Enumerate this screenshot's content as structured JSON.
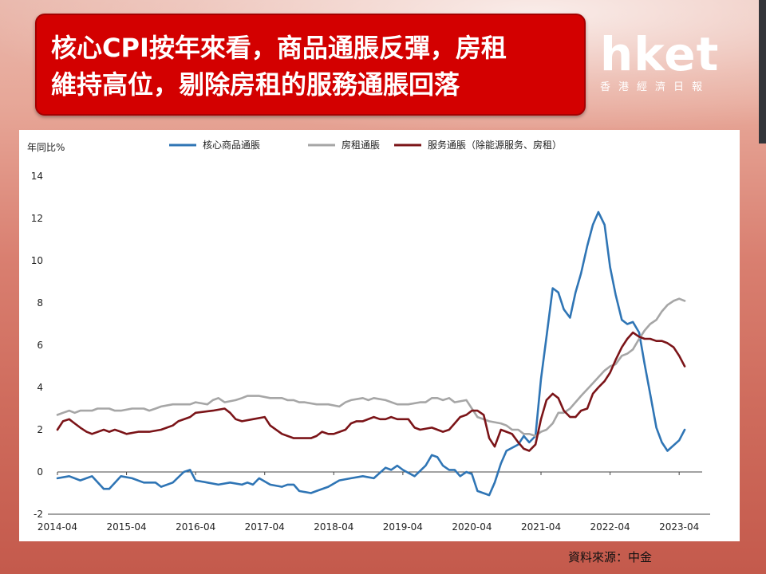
{
  "title": {
    "line1": "核心CPI按年來看，商品通脹反彈，房租",
    "line2": "維持高位，剔除房租的服務通脹回落"
  },
  "logo": {
    "brand": "hket",
    "subtitle": "香港經濟日報"
  },
  "source": "資料來源：中金",
  "colors": {
    "title_bg": "#d30000",
    "core_goods": "#2f75b5",
    "rent": "#a6a6a6",
    "services": "#7b1418"
  },
  "chart_data": {
    "type": "line",
    "ylabel": "年同比%",
    "ylim": [
      -2,
      14
    ],
    "yticks": [
      -2,
      0,
      2,
      4,
      6,
      8,
      10,
      12,
      14
    ],
    "xlim": [
      2014.25,
      2023.583
    ],
    "xticks": [
      "2014-04",
      "2015-04",
      "2016-04",
      "2017-04",
      "2018-04",
      "2019-04",
      "2020-04",
      "2021-04",
      "2022-04",
      "2023-04"
    ],
    "legend_position": "top",
    "grid": false,
    "series": [
      {
        "name": "核心商品通脹",
        "color": "#2f75b5",
        "points": [
          [
            2014.25,
            -0.3
          ],
          [
            2014.42,
            -0.2
          ],
          [
            2014.58,
            -0.4
          ],
          [
            2014.75,
            -0.2
          ],
          [
            2014.92,
            -0.8
          ],
          [
            2015.0,
            -0.8
          ],
          [
            2015.17,
            -0.2
          ],
          [
            2015.33,
            -0.3
          ],
          [
            2015.5,
            -0.5
          ],
          [
            2015.67,
            -0.5
          ],
          [
            2015.75,
            -0.7
          ],
          [
            2015.92,
            -0.5
          ],
          [
            2016.08,
            0.0
          ],
          [
            2016.17,
            0.1
          ],
          [
            2016.25,
            -0.4
          ],
          [
            2016.42,
            -0.5
          ],
          [
            2016.58,
            -0.6
          ],
          [
            2016.75,
            -0.5
          ],
          [
            2016.92,
            -0.6
          ],
          [
            2017.0,
            -0.5
          ],
          [
            2017.08,
            -0.6
          ],
          [
            2017.17,
            -0.3
          ],
          [
            2017.33,
            -0.6
          ],
          [
            2017.5,
            -0.7
          ],
          [
            2017.58,
            -0.6
          ],
          [
            2017.67,
            -0.6
          ],
          [
            2017.75,
            -0.9
          ],
          [
            2017.92,
            -1.0
          ],
          [
            2018.0,
            -0.9
          ],
          [
            2018.17,
            -0.7
          ],
          [
            2018.33,
            -0.4
          ],
          [
            2018.5,
            -0.3
          ],
          [
            2018.67,
            -0.2
          ],
          [
            2018.83,
            -0.3
          ],
          [
            2019.0,
            0.2
          ],
          [
            2019.08,
            0.1
          ],
          [
            2019.17,
            0.3
          ],
          [
            2019.25,
            0.1
          ],
          [
            2019.42,
            -0.2
          ],
          [
            2019.58,
            0.3
          ],
          [
            2019.67,
            0.8
          ],
          [
            2019.75,
            0.7
          ],
          [
            2019.83,
            0.3
          ],
          [
            2019.92,
            0.1
          ],
          [
            2020.0,
            0.1
          ],
          [
            2020.08,
            -0.2
          ],
          [
            2020.17,
            0.0
          ],
          [
            2020.25,
            -0.1
          ],
          [
            2020.33,
            -0.9
          ],
          [
            2020.5,
            -1.1
          ],
          [
            2020.58,
            -0.5
          ],
          [
            2020.67,
            0.4
          ],
          [
            2020.75,
            1.0
          ],
          [
            2020.92,
            1.3
          ],
          [
            2021.0,
            1.7
          ],
          [
            2021.08,
            1.4
          ],
          [
            2021.17,
            1.7
          ],
          [
            2021.25,
            4.4
          ],
          [
            2021.33,
            6.4
          ],
          [
            2021.42,
            8.7
          ],
          [
            2021.5,
            8.5
          ],
          [
            2021.58,
            7.7
          ],
          [
            2021.67,
            7.3
          ],
          [
            2021.75,
            8.5
          ],
          [
            2021.83,
            9.4
          ],
          [
            2021.92,
            10.7
          ],
          [
            2022.0,
            11.7
          ],
          [
            2022.08,
            12.3
          ],
          [
            2022.17,
            11.7
          ],
          [
            2022.25,
            9.7
          ],
          [
            2022.33,
            8.4
          ],
          [
            2022.42,
            7.2
          ],
          [
            2022.5,
            7.0
          ],
          [
            2022.58,
            7.1
          ],
          [
            2022.67,
            6.6
          ],
          [
            2022.75,
            5.1
          ],
          [
            2022.83,
            3.7
          ],
          [
            2022.92,
            2.1
          ],
          [
            2023.0,
            1.4
          ],
          [
            2023.08,
            1.0
          ],
          [
            2023.25,
            1.5
          ],
          [
            2023.33,
            2.0
          ]
        ]
      },
      {
        "name": "房租通脹",
        "color": "#a6a6a6",
        "points": [
          [
            2014.25,
            2.7
          ],
          [
            2014.33,
            2.8
          ],
          [
            2014.42,
            2.9
          ],
          [
            2014.5,
            2.8
          ],
          [
            2014.58,
            2.9
          ],
          [
            2014.75,
            2.9
          ],
          [
            2014.83,
            3.0
          ],
          [
            2015.0,
            3.0
          ],
          [
            2015.08,
            2.9
          ],
          [
            2015.17,
            2.9
          ],
          [
            2015.33,
            3.0
          ],
          [
            2015.5,
            3.0
          ],
          [
            2015.58,
            2.9
          ],
          [
            2015.67,
            3.0
          ],
          [
            2015.75,
            3.1
          ],
          [
            2015.92,
            3.2
          ],
          [
            2016.08,
            3.2
          ],
          [
            2016.17,
            3.2
          ],
          [
            2016.25,
            3.3
          ],
          [
            2016.42,
            3.2
          ],
          [
            2016.5,
            3.4
          ],
          [
            2016.58,
            3.5
          ],
          [
            2016.67,
            3.3
          ],
          [
            2016.83,
            3.4
          ],
          [
            2016.92,
            3.5
          ],
          [
            2017.0,
            3.6
          ],
          [
            2017.17,
            3.6
          ],
          [
            2017.33,
            3.5
          ],
          [
            2017.5,
            3.5
          ],
          [
            2017.58,
            3.4
          ],
          [
            2017.67,
            3.4
          ],
          [
            2017.75,
            3.3
          ],
          [
            2017.83,
            3.3
          ],
          [
            2018.0,
            3.2
          ],
          [
            2018.17,
            3.2
          ],
          [
            2018.33,
            3.1
          ],
          [
            2018.42,
            3.3
          ],
          [
            2018.5,
            3.4
          ],
          [
            2018.67,
            3.5
          ],
          [
            2018.75,
            3.4
          ],
          [
            2018.83,
            3.5
          ],
          [
            2019.0,
            3.4
          ],
          [
            2019.17,
            3.2
          ],
          [
            2019.33,
            3.2
          ],
          [
            2019.5,
            3.3
          ],
          [
            2019.58,
            3.3
          ],
          [
            2019.67,
            3.5
          ],
          [
            2019.75,
            3.5
          ],
          [
            2019.83,
            3.4
          ],
          [
            2019.92,
            3.5
          ],
          [
            2020.0,
            3.3
          ],
          [
            2020.17,
            3.4
          ],
          [
            2020.25,
            3.0
          ],
          [
            2020.33,
            2.6
          ],
          [
            2020.5,
            2.4
          ],
          [
            2020.67,
            2.3
          ],
          [
            2020.75,
            2.2
          ],
          [
            2020.83,
            2.0
          ],
          [
            2020.92,
            2.0
          ],
          [
            2021.0,
            1.8
          ],
          [
            2021.08,
            1.8
          ],
          [
            2021.17,
            1.7
          ],
          [
            2021.25,
            1.9
          ],
          [
            2021.33,
            2.0
          ],
          [
            2021.42,
            2.3
          ],
          [
            2021.5,
            2.8
          ],
          [
            2021.58,
            2.8
          ],
          [
            2021.67,
            3.0
          ],
          [
            2021.83,
            3.6
          ],
          [
            2022.0,
            4.2
          ],
          [
            2022.17,
            4.8
          ],
          [
            2022.25,
            5.0
          ],
          [
            2022.33,
            5.1
          ],
          [
            2022.42,
            5.5
          ],
          [
            2022.5,
            5.6
          ],
          [
            2022.58,
            5.8
          ],
          [
            2022.67,
            6.3
          ],
          [
            2022.75,
            6.7
          ],
          [
            2022.83,
            7.0
          ],
          [
            2022.92,
            7.2
          ],
          [
            2023.0,
            7.6
          ],
          [
            2023.08,
            7.9
          ],
          [
            2023.17,
            8.1
          ],
          [
            2023.25,
            8.2
          ],
          [
            2023.33,
            8.1
          ]
        ]
      },
      {
        "name": "服务通脹（除能源服务、房租）",
        "color": "#7b1418",
        "points": [
          [
            2014.25,
            2.0
          ],
          [
            2014.33,
            2.4
          ],
          [
            2014.42,
            2.5
          ],
          [
            2014.5,
            2.3
          ],
          [
            2014.58,
            2.1
          ],
          [
            2014.67,
            1.9
          ],
          [
            2014.75,
            1.8
          ],
          [
            2014.92,
            2.0
          ],
          [
            2015.0,
            1.9
          ],
          [
            2015.08,
            2.0
          ],
          [
            2015.17,
            1.9
          ],
          [
            2015.25,
            1.8
          ],
          [
            2015.42,
            1.9
          ],
          [
            2015.58,
            1.9
          ],
          [
            2015.75,
            2.0
          ],
          [
            2015.92,
            2.2
          ],
          [
            2016.0,
            2.4
          ],
          [
            2016.17,
            2.6
          ],
          [
            2016.25,
            2.8
          ],
          [
            2016.5,
            2.9
          ],
          [
            2016.67,
            3.0
          ],
          [
            2016.75,
            2.8
          ],
          [
            2016.83,
            2.5
          ],
          [
            2016.92,
            2.4
          ],
          [
            2017.08,
            2.5
          ],
          [
            2017.25,
            2.6
          ],
          [
            2017.33,
            2.2
          ],
          [
            2017.5,
            1.8
          ],
          [
            2017.67,
            1.6
          ],
          [
            2017.83,
            1.6
          ],
          [
            2017.92,
            1.6
          ],
          [
            2018.0,
            1.7
          ],
          [
            2018.08,
            1.9
          ],
          [
            2018.17,
            1.8
          ],
          [
            2018.25,
            1.8
          ],
          [
            2018.42,
            2.0
          ],
          [
            2018.5,
            2.3
          ],
          [
            2018.58,
            2.4
          ],
          [
            2018.67,
            2.4
          ],
          [
            2018.83,
            2.6
          ],
          [
            2018.92,
            2.5
          ],
          [
            2019.0,
            2.5
          ],
          [
            2019.08,
            2.6
          ],
          [
            2019.17,
            2.5
          ],
          [
            2019.33,
            2.5
          ],
          [
            2019.42,
            2.1
          ],
          [
            2019.5,
            2.0
          ],
          [
            2019.67,
            2.1
          ],
          [
            2019.83,
            1.9
          ],
          [
            2019.92,
            2.0
          ],
          [
            2020.0,
            2.3
          ],
          [
            2020.08,
            2.6
          ],
          [
            2020.17,
            2.7
          ],
          [
            2020.25,
            2.9
          ],
          [
            2020.33,
            2.9
          ],
          [
            2020.42,
            2.7
          ],
          [
            2020.5,
            1.6
          ],
          [
            2020.58,
            1.2
          ],
          [
            2020.67,
            2.0
          ],
          [
            2020.75,
            1.9
          ],
          [
            2020.83,
            1.8
          ],
          [
            2020.92,
            1.4
          ],
          [
            2021.0,
            1.1
          ],
          [
            2021.08,
            1.0
          ],
          [
            2021.17,
            1.3
          ],
          [
            2021.25,
            2.5
          ],
          [
            2021.33,
            3.4
          ],
          [
            2021.42,
            3.7
          ],
          [
            2021.5,
            3.5
          ],
          [
            2021.58,
            2.9
          ],
          [
            2021.67,
            2.6
          ],
          [
            2021.75,
            2.6
          ],
          [
            2021.83,
            2.9
          ],
          [
            2021.92,
            3.0
          ],
          [
            2022.0,
            3.7
          ],
          [
            2022.08,
            4.0
          ],
          [
            2022.17,
            4.3
          ],
          [
            2022.25,
            4.7
          ],
          [
            2022.33,
            5.3
          ],
          [
            2022.42,
            5.9
          ],
          [
            2022.5,
            6.3
          ],
          [
            2022.58,
            6.6
          ],
          [
            2022.67,
            6.4
          ],
          [
            2022.75,
            6.3
          ],
          [
            2022.83,
            6.3
          ],
          [
            2022.92,
            6.2
          ],
          [
            2023.0,
            6.2
          ],
          [
            2023.08,
            6.1
          ],
          [
            2023.17,
            5.9
          ],
          [
            2023.25,
            5.5
          ],
          [
            2023.33,
            5.0
          ]
        ]
      }
    ]
  }
}
